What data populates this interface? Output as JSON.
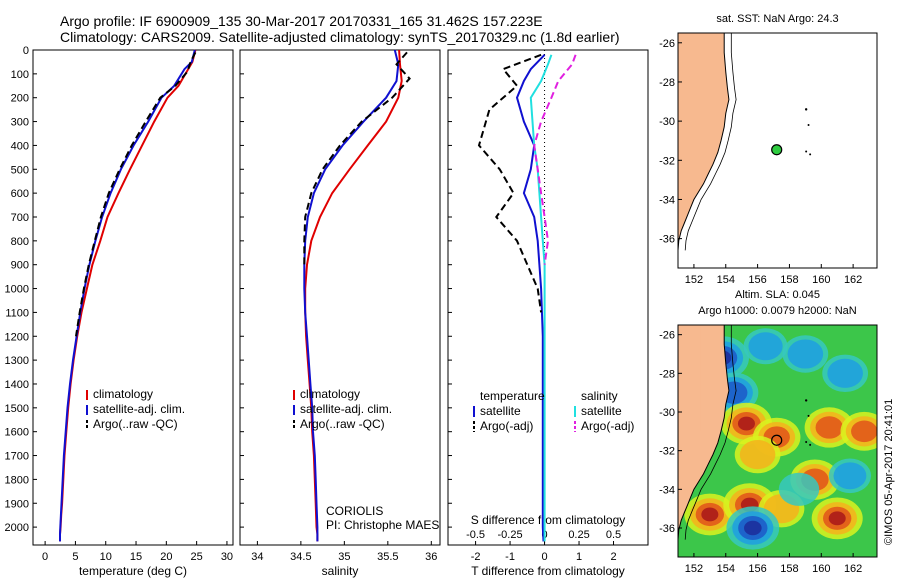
{
  "header": {
    "line1": "Argo profile: IF 6900909_135 30-Mar-2017 20170331_165 31.462S 157.223E",
    "line2": "Climatology: CARS2009. Satellite-adjusted climatology: synTS_20170329.nc (1.8d earlier)"
  },
  "colors": {
    "climatology": "#e00000",
    "satellite": "#1010d0",
    "argo": "#000000",
    "sal_satellite": "#20e0e0",
    "sal_argo": "#e020e0",
    "land": "#f7b98f",
    "float": "#2ecc40"
  },
  "chart_data": [
    {
      "id": "temperature",
      "type": "line",
      "xlabel": "temperature (deg C)",
      "ylabel": "",
      "xlim": [
        -2,
        31
      ],
      "ylim": [
        2075,
        0
      ],
      "xticks": [
        0,
        5,
        10,
        15,
        20,
        25,
        30
      ],
      "yticks": [
        0,
        100,
        200,
        300,
        400,
        500,
        600,
        700,
        800,
        900,
        1000,
        1100,
        1200,
        1300,
        1400,
        1500,
        1600,
        1700,
        1800,
        1900,
        2000
      ],
      "legend": [
        "climatology",
        "satellite-adj. clim.",
        "Argo(..raw -QC)"
      ],
      "series": [
        {
          "name": "climatology",
          "color": "#e00000",
          "dash": "",
          "x": [
            24.8,
            24.3,
            23.6,
            22.0,
            20.2,
            18.0,
            16.0,
            14.0,
            12.1,
            10.3,
            9.1,
            7.8,
            6.9,
            6.0,
            5.3,
            4.7,
            4.2,
            3.8,
            3.5,
            3.2,
            3.0,
            2.8,
            2.65,
            2.55,
            2.45,
            2.45
          ],
          "y": [
            0,
            50,
            80,
            150,
            200,
            300,
            400,
            500,
            600,
            700,
            800,
            900,
            1000,
            1100,
            1200,
            1300,
            1400,
            1500,
            1600,
            1700,
            1800,
            1900,
            1950,
            2000,
            2030,
            2060
          ]
        },
        {
          "name": "satellite-adj. clim.",
          "color": "#1010d0",
          "dash": "",
          "x": [
            24.7,
            24.2,
            23.0,
            21.3,
            19.2,
            17.0,
            14.6,
            12.5,
            10.8,
            9.4,
            8.3,
            7.3,
            6.5,
            5.8,
            5.2,
            4.6,
            4.1,
            3.7,
            3.4,
            3.1,
            2.9,
            2.7,
            2.6,
            2.5,
            2.45,
            2.45
          ],
          "y": [
            0,
            50,
            80,
            150,
            200,
            300,
            400,
            500,
            600,
            700,
            800,
            900,
            1000,
            1100,
            1200,
            1300,
            1400,
            1500,
            1600,
            1700,
            1800,
            1900,
            1950,
            2000,
            2030,
            2060
          ]
        },
        {
          "name": "Argo(..raw -QC)",
          "color": "#000000",
          "dash": "7,4",
          "x": [
            24.8,
            24.0,
            23.5,
            21.5,
            19.0,
            16.6,
            14.3,
            12.3,
            10.5,
            9.2,
            8.2,
            7.2,
            6.4,
            5.7,
            5.1
          ],
          "y": [
            10,
            50,
            90,
            150,
            200,
            300,
            400,
            500,
            600,
            700,
            800,
            900,
            1000,
            1100,
            1200
          ]
        }
      ]
    },
    {
      "id": "salinity",
      "type": "line",
      "xlabel": "salinity",
      "ylabel": "",
      "xlim": [
        33.8,
        36.1
      ],
      "ylim": [
        2075,
        0
      ],
      "xticks": [
        34,
        34.5,
        35,
        35.5,
        36
      ],
      "legend": [
        "climatology",
        "satellite-adj. clim.",
        "Argo(..raw -QC)"
      ],
      "annotations": [
        "CORIOLIS",
        "PI: Christophe MAES"
      ],
      "series": [
        {
          "name": "climatology",
          "color": "#e00000",
          "dash": "",
          "x": [
            35.63,
            35.64,
            35.66,
            35.62,
            35.48,
            35.27,
            35.06,
            34.86,
            34.72,
            34.62,
            34.57,
            34.55,
            34.55,
            34.56,
            34.58,
            34.6,
            34.62,
            34.63,
            34.65,
            34.66,
            34.67,
            34.68,
            34.69,
            34.69
          ],
          "y": [
            0,
            60,
            130,
            200,
            300,
            400,
            500,
            600,
            700,
            800,
            900,
            1000,
            1100,
            1200,
            1300,
            1400,
            1500,
            1600,
            1700,
            1800,
            1900,
            2000,
            2030,
            2060
          ]
        },
        {
          "name": "satellite-adj. clim.",
          "color": "#1010d0",
          "dash": "",
          "x": [
            35.58,
            35.62,
            35.6,
            35.48,
            35.22,
            34.98,
            34.78,
            34.65,
            34.58,
            34.55,
            34.54,
            34.54,
            34.55,
            34.57,
            34.59,
            34.61,
            34.63,
            34.64,
            34.66,
            34.67,
            34.68,
            34.69,
            34.69
          ],
          "y": [
            0,
            60,
            130,
            200,
            300,
            400,
            500,
            600,
            700,
            800,
            900,
            1000,
            1100,
            1200,
            1300,
            1400,
            1500,
            1600,
            1700,
            1800,
            1900,
            2000,
            2060
          ]
        },
        {
          "name": "Argo(..raw -QC)",
          "color": "#000000",
          "dash": "7,4",
          "x": [
            35.72,
            35.6,
            35.75,
            35.55,
            35.2,
            34.95,
            34.75,
            34.62,
            34.55,
            34.54,
            34.54
          ],
          "y": [
            10,
            60,
            120,
            200,
            300,
            400,
            500,
            600,
            700,
            800,
            900
          ]
        }
      ]
    },
    {
      "id": "difference",
      "type": "line",
      "xlabel": "T difference from climatology",
      "xlabel_top": "S difference from climatology",
      "xlim": [
        -2.8,
        3.0
      ],
      "ylim": [
        2075,
        0
      ],
      "xticks": [
        -2,
        -1,
        0,
        1,
        2
      ],
      "xticklabels": [
        "-2",
        "-1",
        "0",
        "1",
        "2"
      ],
      "xticks_top": [
        -2,
        -1,
        0,
        1,
        2
      ],
      "xticklabels_top": [
        "-0.5",
        "-0.25",
        "0",
        "0.25",
        "0.5"
      ],
      "legend_temperature": {
        "title": "temperature",
        "items": [
          "satellite",
          "Argo(-adj)"
        ]
      },
      "legend_salinity": {
        "title": "salinity",
        "items": [
          "satellite",
          "Argo(-adj)"
        ]
      },
      "series": [
        {
          "name": "T satellite",
          "color": "#1010d0",
          "dash": "",
          "x": [
            0.0,
            -0.4,
            -0.6,
            -0.8,
            -0.6,
            -0.3,
            -0.4,
            -0.6,
            -0.3,
            -0.2,
            -0.15,
            -0.1,
            -0.05,
            -0.05,
            -0.05,
            -0.05,
            -0.05,
            -0.05,
            -0.03
          ],
          "y": [
            20,
            80,
            130,
            200,
            300,
            400,
            500,
            600,
            700,
            800,
            900,
            1000,
            1200,
            1400,
            1600,
            1800,
            1900,
            2000,
            2060
          ]
        },
        {
          "name": "T Argo(-adj)",
          "color": "#000000",
          "dash": "7,4",
          "x": [
            -0.1,
            -1.2,
            -0.8,
            -1.6,
            -1.9,
            -1.3,
            -0.9,
            -1.4,
            -0.8,
            -0.5,
            -0.2,
            -0.1
          ],
          "y": [
            20,
            80,
            150,
            250,
            400,
            500,
            600,
            700,
            800,
            900,
            1000,
            1100
          ]
        },
        {
          "name": "S satellite",
          "color": "#20e0e0",
          "dash": "",
          "x": [
            0.2,
            0.1,
            -0.1,
            -0.4,
            -0.35,
            -0.3,
            -0.2,
            -0.15,
            -0.1,
            -0.05,
            0.0,
            0.0,
            0.0,
            0.0,
            0.0
          ],
          "y": [
            20,
            60,
            130,
            200,
            300,
            400,
            500,
            600,
            700,
            800,
            900,
            1200,
            1600,
            2000,
            2060
          ]
        },
        {
          "name": "S Argo(-adj)",
          "color": "#e020e0",
          "dash": "7,4",
          "x": [
            0.9,
            0.8,
            0.4,
            0.2,
            -0.1,
            -0.3,
            -0.2,
            -0.1,
            0.0,
            0.1,
            0.0
          ],
          "y": [
            20,
            60,
            130,
            200,
            300,
            400,
            500,
            600,
            700,
            800,
            900
          ]
        }
      ]
    },
    {
      "id": "sst_map",
      "type": "scatter",
      "title": "sat. SST: NaN  Argo: 24.3",
      "xlim": [
        151,
        163.5
      ],
      "ylim": [
        -37.5,
        -25.5
      ],
      "xticks": [
        152,
        154,
        156,
        158,
        160,
        162
      ],
      "yticks": [
        -26,
        -28,
        -30,
        -32,
        -34,
        -36
      ],
      "float": {
        "lon": 157.2,
        "lat": -31.46
      }
    },
    {
      "id": "sla_map",
      "type": "heatmap",
      "title": "Altim. SLA: 0.045",
      "subtitle": "Argo h1000: 0.0079  h2000: NaN",
      "xlim": [
        151,
        163.5
      ],
      "ylim": [
        -37.5,
        -25.5
      ],
      "xticks": [
        152,
        154,
        156,
        158,
        160,
        162
      ],
      "yticks": [
        -26,
        -28,
        -30,
        -32,
        -34,
        -36
      ],
      "float": {
        "lon": 157.2,
        "lat": -31.46
      },
      "anomalies": [
        {
          "lon": 153.8,
          "lat": -27.2,
          "v": -1.0
        },
        {
          "lon": 156.5,
          "lat": -26.6,
          "v": -0.5
        },
        {
          "lon": 159.0,
          "lat": -27.0,
          "v": -0.6
        },
        {
          "lon": 161.5,
          "lat": -28.0,
          "v": -0.6
        },
        {
          "lon": 154.5,
          "lat": -29.0,
          "v": -0.8
        },
        {
          "lon": 155.3,
          "lat": -30.6,
          "v": 0.9
        },
        {
          "lon": 157.2,
          "lat": -31.3,
          "v": 0.7
        },
        {
          "lon": 156.0,
          "lat": -32.2,
          "v": 0.6
        },
        {
          "lon": 160.5,
          "lat": -30.8,
          "v": 0.8
        },
        {
          "lon": 162.7,
          "lat": -31.0,
          "v": 0.7
        },
        {
          "lon": 159.6,
          "lat": -33.5,
          "v": 0.8
        },
        {
          "lon": 153.0,
          "lat": -35.3,
          "v": 0.9
        },
        {
          "lon": 155.5,
          "lat": -34.8,
          "v": 1.0
        },
        {
          "lon": 157.5,
          "lat": -35.0,
          "v": 0.6
        },
        {
          "lon": 161.0,
          "lat": -35.5,
          "v": 0.9
        },
        {
          "lon": 155.7,
          "lat": -36.0,
          "v": -1.0
        },
        {
          "lon": 158.6,
          "lat": -34.0,
          "v": -0.3
        },
        {
          "lon": 161.8,
          "lat": -33.3,
          "v": -0.4
        }
      ]
    }
  ],
  "watermark": "©IMOS 05-Apr-2017 20:41:01"
}
